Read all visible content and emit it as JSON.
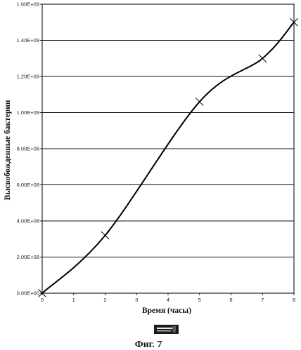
{
  "chart_data": {
    "type": "line",
    "title": "",
    "xlabel": "Время (часы)",
    "ylabel": "Высвобожденные бактерии",
    "xlim": [
      0,
      8
    ],
    "ylim": [
      0,
      1600000000
    ],
    "x_ticks": [
      "0",
      "1",
      "2",
      "3",
      "4",
      "5",
      "6",
      "7",
      "8"
    ],
    "y_ticks": [
      "0.00E+00",
      "2.00E+08",
      "4.00E+08",
      "6.00E+08",
      "8.00E+08",
      "1.00E+09",
      "1.20E+09",
      "1.40E+09",
      "1.60E+09"
    ],
    "grid": "horizontal",
    "legend": "none",
    "series": [
      {
        "marker": "x",
        "color": "#000000",
        "points": [
          {
            "x": 0,
            "y": 0
          },
          {
            "x": 2,
            "y": 320000000
          },
          {
            "x": 5,
            "y": 1060000000
          },
          {
            "x": 7,
            "y": 1300000000
          },
          {
            "x": 8,
            "y": 1500000000
          }
        ]
      }
    ]
  },
  "caption": "Фиг. 7",
  "stamp_icon": "stamp-icon"
}
